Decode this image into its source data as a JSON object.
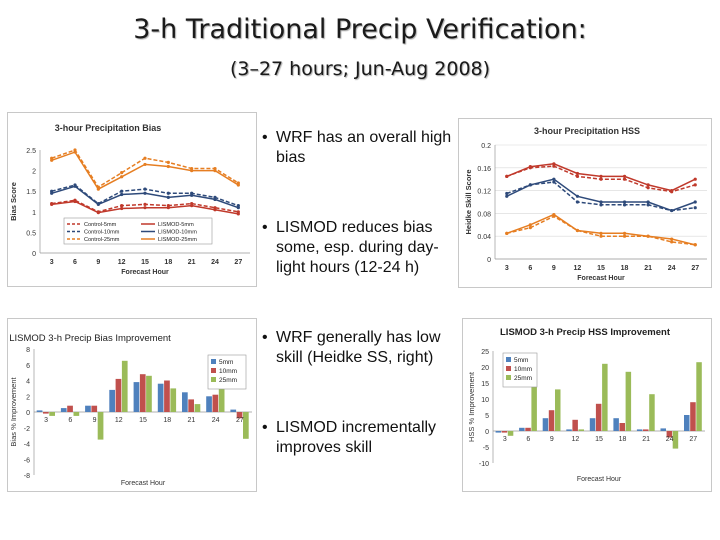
{
  "slide": {
    "title": "3-h Traditional Precip Verification:",
    "subtitle": "(3–27 hours; Jun-Aug 2008)",
    "bullets": [
      "WRF has an overall high bias",
      "LISMOD reduces bias some, esp. during day-light hours (12-24 h)",
      "WRF generally has low skill (Heidke SS, right)",
      "LISMOD incrementally improves skill"
    ]
  },
  "chart_data": [
    {
      "type": "line",
      "title": "3-hour Precipitation Bias",
      "xlabel": "Forecast Hour",
      "ylabel": "Bias Score",
      "x": [
        3,
        6,
        9,
        12,
        15,
        18,
        21,
        24,
        27
      ],
      "ylim": [
        0,
        2.5
      ],
      "yticks": [
        "0",
        "0.5",
        "1",
        "1.5",
        "2",
        "2.5"
      ],
      "grid": false,
      "legend": "inside bottom",
      "series": [
        {
          "name": "Control-5mm",
          "color": "#c0392b",
          "dash": true,
          "values": [
            1.2,
            1.28,
            1.0,
            1.15,
            1.18,
            1.15,
            1.2,
            1.1,
            1.0
          ]
        },
        {
          "name": "LISMOD-5mm",
          "color": "#c0392b",
          "dash": false,
          "values": [
            1.18,
            1.25,
            0.98,
            1.08,
            1.1,
            1.1,
            1.15,
            1.05,
            0.95
          ]
        },
        {
          "name": "Control-10mm",
          "color": "#2e4a7a",
          "dash": true,
          "values": [
            1.5,
            1.65,
            1.2,
            1.5,
            1.55,
            1.45,
            1.45,
            1.35,
            1.15
          ]
        },
        {
          "name": "LISMOD-10mm",
          "color": "#2e4a7a",
          "dash": false,
          "values": [
            1.45,
            1.62,
            1.18,
            1.42,
            1.45,
            1.35,
            1.4,
            1.3,
            1.1
          ]
        },
        {
          "name": "Control-25mm",
          "color": "#e67e22",
          "dash": true,
          "values": [
            2.3,
            2.5,
            1.6,
            1.95,
            2.3,
            2.2,
            2.05,
            2.05,
            1.7
          ]
        },
        {
          "name": "LISMOD-25mm",
          "color": "#e67e22",
          "dash": false,
          "values": [
            2.25,
            2.45,
            1.55,
            1.85,
            2.15,
            2.1,
            2.0,
            2.0,
            1.65
          ]
        }
      ]
    },
    {
      "type": "line",
      "title": "3-hour Precipitation HSS",
      "xlabel": "Forecast Hour",
      "ylabel": "Heidke Skill Score",
      "x": [
        3,
        6,
        9,
        12,
        15,
        18,
        21,
        24,
        27
      ],
      "ylim": [
        0,
        0.2
      ],
      "yticks": [
        "0",
        "0.04",
        "0.08",
        "0.12",
        "0.16",
        "0.2"
      ],
      "grid": true,
      "series": [
        {
          "name": "Control-5mm",
          "color": "#c0392b",
          "dash": true,
          "values": [
            0.145,
            0.16,
            0.163,
            0.145,
            0.14,
            0.14,
            0.125,
            0.118,
            0.13
          ]
        },
        {
          "name": "LISMOD-5mm",
          "color": "#c0392b",
          "dash": false,
          "values": [
            0.145,
            0.162,
            0.167,
            0.15,
            0.145,
            0.145,
            0.13,
            0.12,
            0.14
          ]
        },
        {
          "name": "Control-10mm",
          "color": "#2e4a7a",
          "dash": true,
          "values": [
            0.115,
            0.13,
            0.135,
            0.1,
            0.095,
            0.095,
            0.095,
            0.085,
            0.09
          ]
        },
        {
          "name": "LISMOD-10mm",
          "color": "#2e4a7a",
          "dash": false,
          "values": [
            0.11,
            0.13,
            0.14,
            0.11,
            0.1,
            0.1,
            0.1,
            0.085,
            0.1
          ]
        },
        {
          "name": "Control-25mm",
          "color": "#e67e22",
          "dash": true,
          "values": [
            0.045,
            0.055,
            0.075,
            0.05,
            0.04,
            0.04,
            0.04,
            0.03,
            0.025
          ]
        },
        {
          "name": "LISMOD-25mm",
          "color": "#e67e22",
          "dash": false,
          "values": [
            0.045,
            0.06,
            0.078,
            0.05,
            0.045,
            0.045,
            0.04,
            0.035,
            0.025
          ]
        }
      ]
    },
    {
      "type": "bar",
      "title": "LISMOD 3-h Precip Bias Improvement",
      "xlabel": "Forecast Hour",
      "ylabel": "Bias % Improvement",
      "categories": [
        "3",
        "6",
        "9",
        "12",
        "15",
        "18",
        "21",
        "24",
        "27"
      ],
      "ylim": [
        -8,
        8
      ],
      "yticks": [
        "-8",
        "-6",
        "-4",
        "-2",
        "0",
        "2",
        "4",
        "6",
        "8"
      ],
      "legend": "top-right",
      "series": [
        {
          "name": "5mm",
          "color": "#4f81bd",
          "values": [
            0.2,
            0.5,
            0.8,
            2.8,
            3.8,
            3.6,
            2.5,
            2.0,
            0.3
          ]
        },
        {
          "name": "10mm",
          "color": "#c0504d",
          "values": [
            -0.2,
            0.8,
            0.8,
            4.2,
            4.8,
            4.0,
            1.6,
            2.2,
            -0.8
          ]
        },
        {
          "name": "25mm",
          "color": "#9bbb59",
          "values": [
            -0.5,
            -0.5,
            -3.5,
            6.5,
            4.6,
            3.0,
            1.0,
            3.6,
            -3.4
          ]
        }
      ]
    },
    {
      "type": "bar",
      "title": "LISMOD 3-h Precip HSS Improvement",
      "xlabel": "Forecast Hour",
      "ylabel": "HSS % Improvement",
      "categories": [
        "3",
        "6",
        "9",
        "12",
        "15",
        "18",
        "21",
        "24",
        "27"
      ],
      "ylim": [
        -10,
        25
      ],
      "yticks": [
        "-10",
        "-5",
        "0",
        "5",
        "10",
        "15",
        "20",
        "25"
      ],
      "legend": "top-left",
      "series": [
        {
          "name": "5mm",
          "color": "#4f81bd",
          "values": [
            -0.5,
            1.0,
            4.0,
            0.5,
            4.0,
            4.0,
            0.5,
            0.8,
            5.0
          ]
        },
        {
          "name": "10mm",
          "color": "#c0504d",
          "values": [
            -0.5,
            1.0,
            6.5,
            3.5,
            8.5,
            2.5,
            0.5,
            -2.0,
            9.0
          ]
        },
        {
          "name": "25mm",
          "color": "#9bbb59",
          "values": [
            -1.5,
            14.0,
            13.0,
            0.5,
            21.0,
            18.5,
            11.5,
            -5.5,
            21.5
          ]
        }
      ]
    }
  ]
}
